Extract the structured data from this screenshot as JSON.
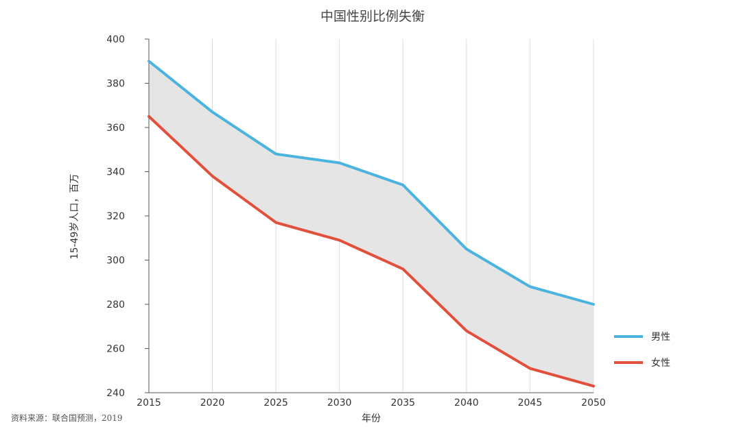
{
  "chart_data": {
    "type": "line",
    "title": "中国性别比例失衡",
    "xlabel": "年份",
    "ylabel": "15-49岁人口，百万",
    "x": [
      2015,
      2020,
      2025,
      2030,
      2035,
      2040,
      2045,
      2050
    ],
    "x_tick_labels": [
      "2015",
      "2020",
      "2025",
      "2030",
      "2035",
      "2040",
      "2045",
      "2050"
    ],
    "y_ticks": [
      240,
      260,
      280,
      300,
      320,
      340,
      360,
      380,
      400
    ],
    "y_tick_labels": [
      "240",
      "260",
      "280",
      "300",
      "320",
      "340",
      "360",
      "380",
      "400"
    ],
    "ylim": [
      240,
      400
    ],
    "grid": "vertical",
    "legend_position": "right",
    "shaded_between_series": true,
    "series": [
      {
        "name": "男性",
        "color": "#4AB3E0",
        "values": [
          390,
          367,
          348,
          344,
          334,
          305,
          288,
          280
        ]
      },
      {
        "name": "女性",
        "color": "#E0503C",
        "values": [
          365,
          338,
          317,
          309,
          296,
          268,
          251,
          243
        ]
      }
    ],
    "fill_color": "#E5E5E5",
    "source": "资料来源：联合国预测，2019"
  }
}
